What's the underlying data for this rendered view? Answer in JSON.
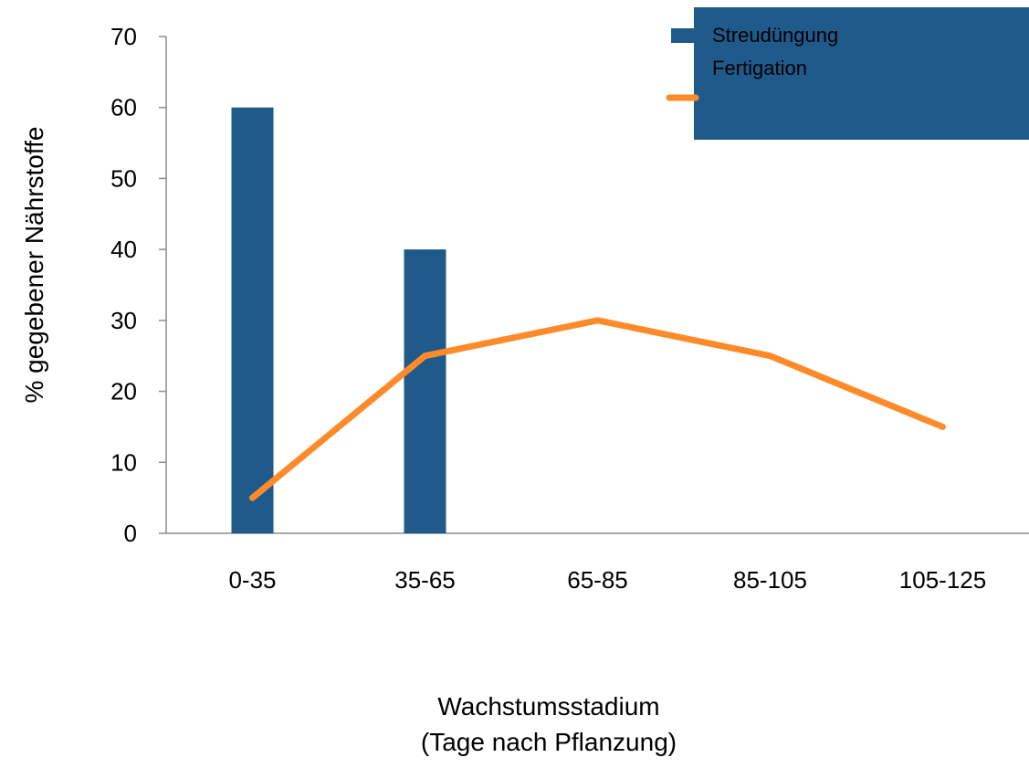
{
  "chart_data": {
    "type": "bar+line",
    "categories": [
      "0-35",
      "35-65",
      "65-85",
      "85-105",
      "105-125"
    ],
    "series": [
      {
        "name": "Streudüngung",
        "type": "bar",
        "values": [
          60,
          40,
          0,
          0,
          0
        ],
        "color": "#1f5a8b"
      },
      {
        "name": "Fertigation",
        "type": "line",
        "values": [
          5,
          25,
          30,
          25,
          15
        ],
        "color": "#ff8a2a"
      }
    ],
    "yticks": [
      "0",
      "10",
      "20",
      "30",
      "40",
      "50",
      "60",
      "70"
    ],
    "ylim": [
      0,
      70
    ],
    "ylabel": "% gegebener Nährstoffe",
    "xlabel_line1": "Wachstumsstadium",
    "xlabel_line2": "(Tage nach Pflanzung)",
    "grid": false,
    "legend": {
      "placement": "top-right",
      "background": "#1f5a8b"
    }
  }
}
